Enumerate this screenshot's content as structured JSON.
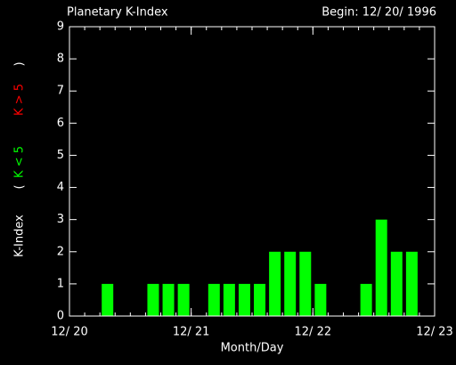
{
  "chart_data": {
    "type": "bar",
    "title": "Planetary K-Index",
    "subtitle": "Begin: 12/ 20/ 1996",
    "xlabel": "Month/Day",
    "ylabel": "K-Index",
    "legend_brackets": [
      "(",
      ")"
    ],
    "legend": [
      {
        "label": "K < 5",
        "color": "#00ff00"
      },
      {
        "label": "K > 5",
        "color": "#ff0000"
      }
    ],
    "x": [
      0,
      0.125,
      0.25,
      0.375,
      0.5,
      0.625,
      0.75,
      0.875,
      1,
      1.125,
      1.25,
      1.375,
      1.5,
      1.625,
      1.75,
      1.875,
      2,
      2.125,
      2.25,
      2.375,
      2.5,
      2.625,
      2.75,
      2.875
    ],
    "series": [
      {
        "name": "K-Index",
        "color": "#00ff00",
        "values": [
          0,
          0,
          1,
          0,
          0,
          1,
          1,
          1,
          0,
          1,
          1,
          1,
          1,
          2,
          2,
          2,
          1,
          0,
          0,
          1,
          3,
          2,
          2,
          0
        ]
      }
    ],
    "xlim": [
      0,
      3
    ],
    "xticks": [
      {
        "value": 0,
        "label": "12/ 20"
      },
      {
        "value": 1,
        "label": "12/ 21"
      },
      {
        "value": 2,
        "label": "12/ 22"
      },
      {
        "value": 3,
        "label": "12/ 23"
      }
    ],
    "ylim": [
      0,
      9
    ],
    "yticks": [
      0,
      1,
      2,
      3,
      4,
      5,
      6,
      7,
      8,
      9
    ]
  }
}
